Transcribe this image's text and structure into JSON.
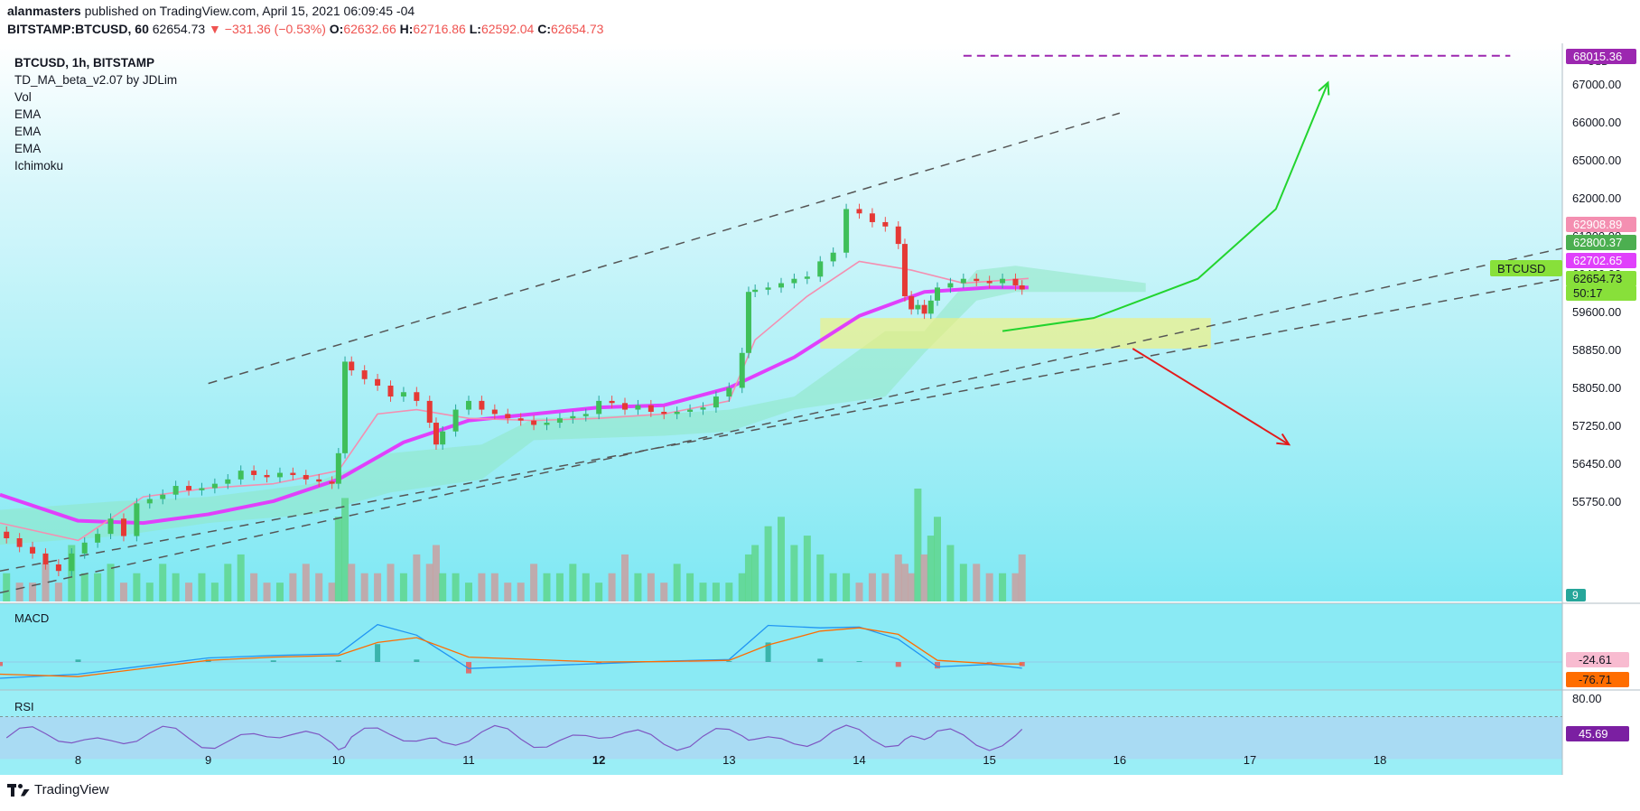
{
  "header": {
    "author": "alanmasters",
    "published_text": "published on TradingView.com, April 15, 2021 06:09:45 -04",
    "symbol_tf": "BITSTAMP:BTCUSD, 60",
    "last": "62654.73",
    "change": "−331.36 (−0.53%)",
    "o_label": "O:",
    "o": "62632.66",
    "h_label": "H:",
    "h": "62716.86",
    "l_label": "L:",
    "l": "62592.04",
    "c_label": "C:",
    "c": "62654.73"
  },
  "legend": [
    "BTCUSD, 1h, BITSTAMP",
    "TD_MA_beta_v2.07 by JDLim",
    "Vol",
    "EMA",
    "EMA",
    "EMA",
    "Ichimoku"
  ],
  "price_axis": {
    "currency": "USD",
    "ticks": [
      "67000.00",
      "66000.00",
      "65000.00",
      "62000.00",
      "61200.00",
      "60400.00",
      "59600.00",
      "58850.00",
      "58050.00",
      "57250.00",
      "56450.00",
      "55750.00"
    ],
    "labels": [
      {
        "text": "68015.36",
        "color": "#9c27b0"
      },
      {
        "text": "62908.89",
        "color": "#f48fb1"
      },
      {
        "text": "62800.37",
        "color": "#4caf50"
      },
      {
        "text": "62702.65",
        "color": "#e040fb"
      },
      {
        "text": "62654.73",
        "color": "#88e03a"
      },
      {
        "text": "50:17",
        "color": "#88e03a"
      }
    ],
    "symbol_tag": "BTCUSD",
    "volume_tag": "9"
  },
  "macd": {
    "title": "MACD",
    "labels": [
      "-24.61",
      "-76.71"
    ]
  },
  "rsi": {
    "title": "RSI",
    "level": "80.00",
    "value": "45.69"
  },
  "time_axis": [
    "8",
    "9",
    "10",
    "11",
    "12",
    "13",
    "14",
    "15",
    "16",
    "17",
    "18"
  ],
  "footer": {
    "brand": "TradingView"
  },
  "chart_data": {
    "type": "candlestick",
    "title": "BTCUSD, 1h, BITSTAMP",
    "ylim": [
      55500,
      68300
    ],
    "x_range_days": [
      7.4,
      19.4
    ],
    "close_series": [
      [
        7.45,
        56950
      ],
      [
        7.55,
        56750
      ],
      [
        7.65,
        56600
      ],
      [
        7.75,
        56350
      ],
      [
        7.85,
        56200
      ],
      [
        7.95,
        56600
      ],
      [
        8.05,
        56850
      ],
      [
        8.15,
        57050
      ],
      [
        8.25,
        57400
      ],
      [
        8.35,
        57000
      ],
      [
        8.45,
        57750
      ],
      [
        8.55,
        57850
      ],
      [
        8.65,
        57950
      ],
      [
        8.75,
        58150
      ],
      [
        8.85,
        58050
      ],
      [
        8.95,
        58100
      ],
      [
        9.05,
        58200
      ],
      [
        9.15,
        58300
      ],
      [
        9.25,
        58500
      ],
      [
        9.35,
        58400
      ],
      [
        9.45,
        58350
      ],
      [
        9.55,
        58450
      ],
      [
        9.65,
        58400
      ],
      [
        9.75,
        58300
      ],
      [
        9.85,
        58250
      ],
      [
        9.95,
        58200
      ],
      [
        10.0,
        58900
      ],
      [
        10.05,
        61000
      ],
      [
        10.1,
        60800
      ],
      [
        10.2,
        60600
      ],
      [
        10.3,
        60450
      ],
      [
        10.4,
        60200
      ],
      [
        10.5,
        60300
      ],
      [
        10.6,
        60100
      ],
      [
        10.7,
        59600
      ],
      [
        10.75,
        59100
      ],
      [
        10.8,
        59400
      ],
      [
        10.9,
        59900
      ],
      [
        11.0,
        60100
      ],
      [
        11.1,
        59900
      ],
      [
        11.2,
        59800
      ],
      [
        11.3,
        59700
      ],
      [
        11.4,
        59650
      ],
      [
        11.5,
        59550
      ],
      [
        11.6,
        59600
      ],
      [
        11.7,
        59700
      ],
      [
        11.8,
        59750
      ],
      [
        11.9,
        59800
      ],
      [
        12.0,
        60100
      ],
      [
        12.1,
        60050
      ],
      [
        12.2,
        59900
      ],
      [
        12.3,
        60000
      ],
      [
        12.4,
        59850
      ],
      [
        12.5,
        59800
      ],
      [
        12.6,
        59850
      ],
      [
        12.7,
        59900
      ],
      [
        12.8,
        59950
      ],
      [
        12.9,
        60200
      ],
      [
        13.0,
        60400
      ],
      [
        13.1,
        61200
      ],
      [
        13.15,
        62600
      ],
      [
        13.2,
        62650
      ],
      [
        13.3,
        62700
      ],
      [
        13.4,
        62800
      ],
      [
        13.5,
        62900
      ],
      [
        13.6,
        62950
      ],
      [
        13.7,
        63300
      ],
      [
        13.8,
        63500
      ],
      [
        13.9,
        64500
      ],
      [
        14.0,
        64400
      ],
      [
        14.1,
        64200
      ],
      [
        14.2,
        64100
      ],
      [
        14.3,
        63700
      ],
      [
        14.35,
        62500
      ],
      [
        14.4,
        62200
      ],
      [
        14.45,
        62300
      ],
      [
        14.5,
        62100
      ],
      [
        14.55,
        62400
      ],
      [
        14.6,
        62700
      ],
      [
        14.7,
        62800
      ],
      [
        14.8,
        62900
      ],
      [
        14.9,
        62850
      ],
      [
        15.0,
        62800
      ],
      [
        15.1,
        62900
      ],
      [
        15.2,
        62750
      ],
      [
        15.25,
        62654.73
      ]
    ],
    "ema_series": [
      {
        "color": "#e040fb",
        "values": [
          [
            7.4,
            57950
          ],
          [
            8.0,
            57350
          ],
          [
            8.5,
            57300
          ],
          [
            9.0,
            57500
          ],
          [
            9.5,
            57800
          ],
          [
            10.0,
            58300
          ],
          [
            10.5,
            59150
          ],
          [
            11.0,
            59650
          ],
          [
            11.5,
            59800
          ],
          [
            12.0,
            59950
          ],
          [
            12.5,
            60000
          ],
          [
            13.0,
            60400
          ],
          [
            13.5,
            61100
          ],
          [
            14.0,
            62050
          ],
          [
            14.5,
            62600
          ],
          [
            15.0,
            62700
          ],
          [
            15.3,
            62700
          ]
        ]
      },
      {
        "color": "#f48fb1",
        "values": [
          [
            7.4,
            57300
          ],
          [
            8.0,
            56900
          ],
          [
            8.5,
            57900
          ],
          [
            9.0,
            58100
          ],
          [
            9.5,
            58200
          ],
          [
            10.0,
            58500
          ],
          [
            10.3,
            59800
          ],
          [
            10.6,
            59900
          ],
          [
            11.0,
            59700
          ],
          [
            11.5,
            59650
          ],
          [
            12.0,
            59700
          ],
          [
            12.5,
            59800
          ],
          [
            13.0,
            60100
          ],
          [
            13.2,
            61500
          ],
          [
            13.6,
            62500
          ],
          [
            14.0,
            63300
          ],
          [
            14.4,
            63100
          ],
          [
            14.8,
            62800
          ],
          [
            15.3,
            62908.89
          ]
        ]
      }
    ],
    "ichimoku_cloud": [
      [
        7.4,
        56800,
        57600
      ],
      [
        8.3,
        57000,
        57800
      ],
      [
        9.0,
        57300,
        57900
      ],
      [
        9.8,
        57500,
        58200
      ],
      [
        10.4,
        58000,
        58900
      ],
      [
        11.1,
        58300,
        59100
      ],
      [
        11.5,
        59200,
        59700
      ],
      [
        12.5,
        59300,
        59800
      ],
      [
        13.0,
        59400,
        59900
      ],
      [
        13.5,
        59900,
        60200
      ],
      [
        14.2,
        60200,
        61700
      ],
      [
        14.5,
        61200,
        61700
      ],
      [
        14.9,
        62400,
        63100
      ],
      [
        15.2,
        62600,
        63200
      ],
      [
        16.2,
        62600,
        62800
      ]
    ],
    "channel_lines": [
      {
        "from": [
          9.0,
          60500
        ],
        "to": [
          16.0,
          66700
        ],
        "style": "dashed"
      },
      {
        "from": [
          7.4,
          55700
        ],
        "to": [
          19.4,
          63600
        ],
        "style": "dashed"
      },
      {
        "from": [
          7.4,
          56200
        ],
        "to": [
          19.4,
          62900
        ],
        "style": "dashed"
      }
    ],
    "support_zone": {
      "x": [
        13.7,
        16.7
      ],
      "y": [
        61300,
        62000
      ]
    },
    "resistance_level": {
      "x": [
        14.8,
        19.0
      ],
      "y": 68015.36,
      "color": "#9c27b0"
    },
    "projections": [
      {
        "color": "#22d42e",
        "path": [
          [
            15.1,
            61700
          ],
          [
            15.8,
            62000
          ],
          [
            16.6,
            62900
          ],
          [
            17.2,
            64500
          ],
          [
            17.6,
            67400
          ]
        ]
      },
      {
        "color": "#e31b1b",
        "path": [
          [
            16.1,
            61300
          ],
          [
            17.3,
            59100
          ]
        ]
      }
    ],
    "volume": [
      3,
      2,
      2,
      4,
      2,
      6,
      3,
      3,
      4,
      2,
      3,
      2,
      4,
      3,
      2,
      3,
      2,
      4,
      5,
      3,
      2,
      2,
      3,
      4,
      3,
      2,
      9,
      11,
      4,
      3,
      3,
      4,
      3,
      5,
      4,
      6,
      3,
      3,
      2,
      3,
      3,
      2,
      2,
      4,
      3,
      3,
      4,
      3,
      2,
      3,
      5,
      3,
      3,
      2,
      4,
      3,
      2,
      2,
      2,
      3,
      5,
      6,
      8,
      9,
      6,
      7,
      5,
      3,
      3,
      2,
      3,
      3,
      5,
      4,
      3,
      12,
      5,
      7,
      9,
      6,
      4,
      4,
      3,
      3,
      3,
      5,
      2
    ],
    "macd": {
      "macd_line": [
        [
          7.4,
          -200
        ],
        [
          8.0,
          -150
        ],
        [
          9.0,
          50
        ],
        [
          9.5,
          80
        ],
        [
          10.0,
          100
        ],
        [
          10.3,
          460
        ],
        [
          10.6,
          330
        ],
        [
          11.0,
          -80
        ],
        [
          12.0,
          -20
        ],
        [
          12.5,
          10
        ],
        [
          13.0,
          30
        ],
        [
          13.3,
          450
        ],
        [
          13.7,
          420
        ],
        [
          14.0,
          430
        ],
        [
          14.3,
          280
        ],
        [
          14.6,
          -60
        ],
        [
          15.0,
          -30
        ],
        [
          15.25,
          -76.71
        ]
      ],
      "signal_line": [
        [
          7.4,
          -150
        ],
        [
          8.0,
          -180
        ],
        [
          9.0,
          20
        ],
        [
          9.5,
          60
        ],
        [
          10.0,
          80
        ],
        [
          10.3,
          240
        ],
        [
          10.6,
          300
        ],
        [
          11.0,
          60
        ],
        [
          12.0,
          0
        ],
        [
          12.5,
          5
        ],
        [
          13.0,
          20
        ],
        [
          13.3,
          210
        ],
        [
          13.7,
          380
        ],
        [
          14.0,
          420
        ],
        [
          14.3,
          340
        ],
        [
          14.6,
          20
        ],
        [
          15.0,
          -20
        ],
        [
          15.25,
          -24.61
        ]
      ]
    },
    "rsi": {
      "level": 80,
      "value": 45.69
    }
  }
}
